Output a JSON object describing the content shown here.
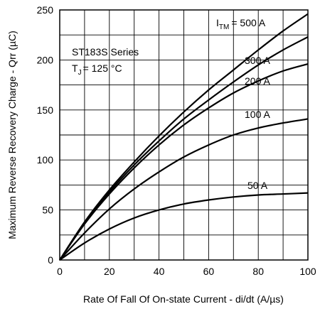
{
  "chart_data": {
    "type": "line",
    "xlabel": "Rate Of Fall Of On-state Current - di/dt (A/µs)",
    "ylabel": "Maximum Reverse Recovery Charge - Qrr (µC)",
    "xlim": [
      0,
      100
    ],
    "ylim": [
      0,
      250
    ],
    "x_ticks": [
      0,
      20,
      40,
      60,
      80,
      100
    ],
    "y_ticks": [
      0,
      50,
      100,
      150,
      200,
      250
    ],
    "grid": true,
    "annotations": {
      "series_line": "ST183S Series",
      "tj_symbol": "T",
      "tj_sub": "J",
      "tj_value": "= 125 °C",
      "itm_symbol": "I",
      "itm_sub": "TM"
    },
    "x": [
      0,
      10,
      20,
      30,
      40,
      50,
      60,
      70,
      80,
      90,
      100
    ],
    "series": [
      {
        "name": "= 500 A",
        "values": [
          0,
          38,
          70,
          98,
          124,
          148,
          170,
          190,
          210,
          229,
          246
        ]
      },
      {
        "name": "300 A",
        "values": [
          0,
          37,
          68,
          95,
          119,
          141,
          160,
          178,
          195,
          210,
          223
        ]
      },
      {
        "name": "200 A",
        "values": [
          0,
          36,
          66,
          92,
          115,
          135,
          152,
          167,
          179,
          189,
          196
        ]
      },
      {
        "name": "100 A",
        "values": [
          0,
          27,
          51,
          71,
          88,
          103,
          115,
          125,
          132,
          137,
          141
        ]
      },
      {
        "name": "50 A",
        "values": [
          0,
          17,
          31,
          42,
          50,
          56,
          60,
          63,
          65,
          66,
          67
        ]
      }
    ]
  }
}
